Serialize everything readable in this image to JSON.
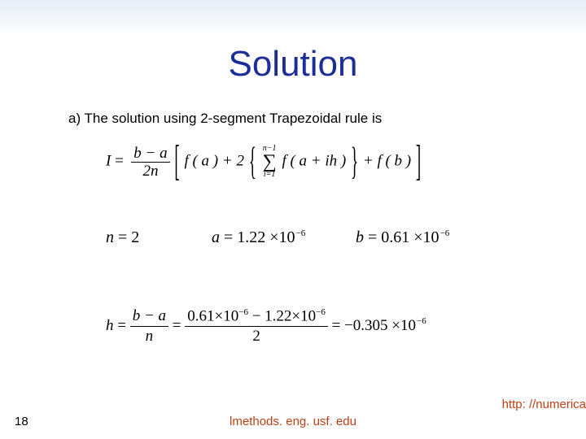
{
  "colors": {
    "title": "#1d2e99",
    "footer_center": "#bf3f14",
    "footer_right": "#bf3f14",
    "body_text": "#000000"
  },
  "header": {
    "title": "Solution"
  },
  "body": {
    "subtitle": "a) The solution using 2-segment Trapezoidal rule is",
    "main_formula": {
      "lhs": "I",
      "frac_num": "b − a",
      "frac_den": "2n",
      "term1": "f ( a ) + 2",
      "sigma_upper": "n−1",
      "sigma_lower": "i=1",
      "term2": "f ( a + ih )",
      "term3": "+ f ( b )"
    },
    "row2": {
      "n_lhs": "n",
      "n_rhs": "2",
      "a_lhs": "a",
      "a_coeff": "1.22",
      "a_exp": "−6",
      "b_lhs": "b",
      "b_coeff": "0.61",
      "b_exp": "−6"
    },
    "h_formula": {
      "lhs": "h",
      "frac1_num": "b − a",
      "frac1_den": "n",
      "frac2_num_a": "0.61",
      "frac2_num_exp_a": "−6",
      "frac2_num_b": "1.22",
      "frac2_num_exp_b": "−6",
      "frac2_den": "2",
      "rhs_coeff": "−0.305",
      "rhs_exp": "−6"
    }
  },
  "footer": {
    "slide_number": "18",
    "center": "lmethods. eng. usf. edu",
    "right": "http: //numerica"
  }
}
